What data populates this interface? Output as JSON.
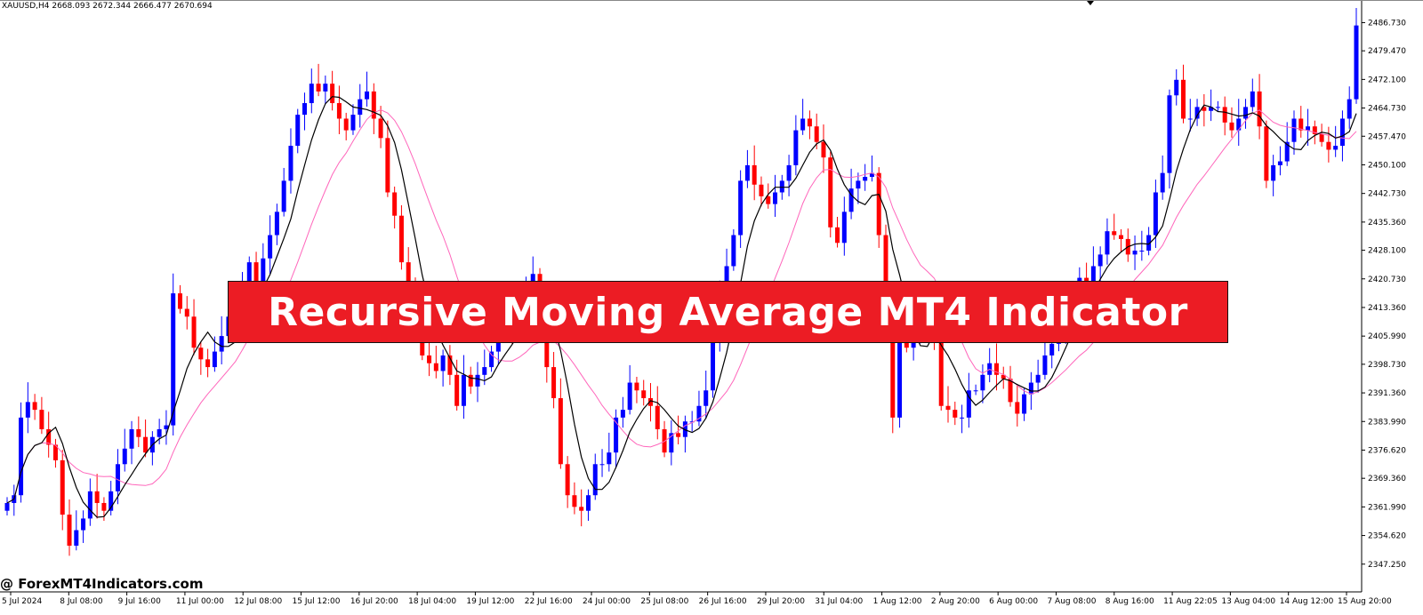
{
  "header": {
    "label": "XAUUSD,H4  2668.093 2672.344 2666.477 2670.694"
  },
  "banner": {
    "text": "Recursive Moving Average MT4 Indicator"
  },
  "watermark": {
    "text": "@ ForexMT4Indicators.com"
  },
  "colors": {
    "bull": "#0000ff",
    "bear": "#ff0000",
    "fast_ma": "#000000",
    "slow_ma": "#ff66bb",
    "axis": "#000000",
    "banner": "#ec1c24"
  },
  "chart_data": {
    "type": "candlestick",
    "symbol": "XAUUSD",
    "timeframe": "H4",
    "ylim": [
      2340.1,
      2492.1
    ],
    "y_ticks": [
      "2486.730",
      "2479.470",
      "2472.100",
      "2464.730",
      "2457.470",
      "2450.100",
      "2442.730",
      "2435.360",
      "2428.100",
      "2420.730",
      "2413.360",
      "2405.990",
      "2398.730",
      "2391.360",
      "2383.990",
      "2376.620",
      "2369.360",
      "2361.990",
      "2354.620",
      "2347.250"
    ],
    "x_ticks": [
      "5 Jul 2024",
      "8 Jul 08:00",
      "9 Jul 16:00",
      "11 Jul 00:00",
      "12 Jul 08:00",
      "15 Jul 12:00",
      "16 Jul 20:00",
      "18 Jul 04:00",
      "19 Jul 12:00",
      "22 Jul 16:00",
      "24 Jul 00:00",
      "25 Jul 08:00",
      "26 Jul 16:00",
      "29 Jul 20:00",
      "31 Jul 04:00",
      "1 Aug 12:00",
      "2 Aug 20:00",
      "6 Aug 00:00",
      "7 Aug 08:00",
      "8 Aug 16:00",
      "11 Aug 22:05",
      "13 Aug 04:00",
      "14 Aug 12:00",
      "15 Aug 20:00"
    ],
    "closes": [
      2363,
      2365,
      2385,
      2389,
      2387,
      2382,
      2378,
      2374,
      2360,
      2352,
      2356,
      2359,
      2366,
      2363,
      2361,
      2366,
      2373,
      2377,
      2382,
      2380,
      2376,
      2380,
      2382,
      2383,
      2417,
      2413,
      2411,
      2403,
      2400,
      2398,
      2402,
      2406,
      2411,
      2410,
      2418,
      2425,
      2420,
      2426,
      2432,
      2438,
      2446,
      2455,
      2463,
      2466,
      2471,
      2469,
      2471,
      2466,
      2462,
      2459,
      2463,
      2467,
      2469,
      2462,
      2457,
      2443,
      2437,
      2425,
      2416,
      2408,
      2401,
      2399,
      2397,
      2401,
      2396,
      2388,
      2396,
      2393,
      2396,
      2398,
      2402,
      2407,
      2412,
      2408,
      2414,
      2418,
      2422,
      2412,
      2398,
      2390,
      2373,
      2365,
      2362,
      2361,
      2365,
      2373,
      2373,
      2376,
      2385,
      2387,
      2394,
      2392,
      2390,
      2388,
      2382,
      2376,
      2381,
      2380,
      2384,
      2384,
      2388,
      2392,
      2406,
      2417,
      2424,
      2432,
      2446,
      2450,
      2445,
      2442,
      2440,
      2443,
      2446,
      2450,
      2459,
      2462,
      2460,
      2456,
      2452,
      2434,
      2430,
      2438,
      2444,
      2446,
      2447,
      2448,
      2432,
      2412,
      2385,
      2406,
      2403,
      2406,
      2409,
      2411,
      2405,
      2388,
      2387,
      2385,
      2385,
      2392,
      2392,
      2396,
      2399,
      2396,
      2395,
      2389,
      2386,
      2391,
      2394,
      2396,
      2401,
      2404,
      2408,
      2415,
      2418,
      2421,
      2419,
      2424,
      2427,
      2433,
      2432,
      2431,
      2427,
      2428,
      2428,
      2432,
      2443,
      2448,
      2468,
      2472,
      2462,
      2462,
      2465,
      2464,
      2465,
      2465,
      2461,
      2459,
      2462,
      2465,
      2469,
      2460,
      2446,
      2450,
      2451,
      2456,
      2462,
      2459,
      2460,
      2458,
      2456,
      2454,
      2455,
      2462,
      2467,
      2486
    ]
  }
}
